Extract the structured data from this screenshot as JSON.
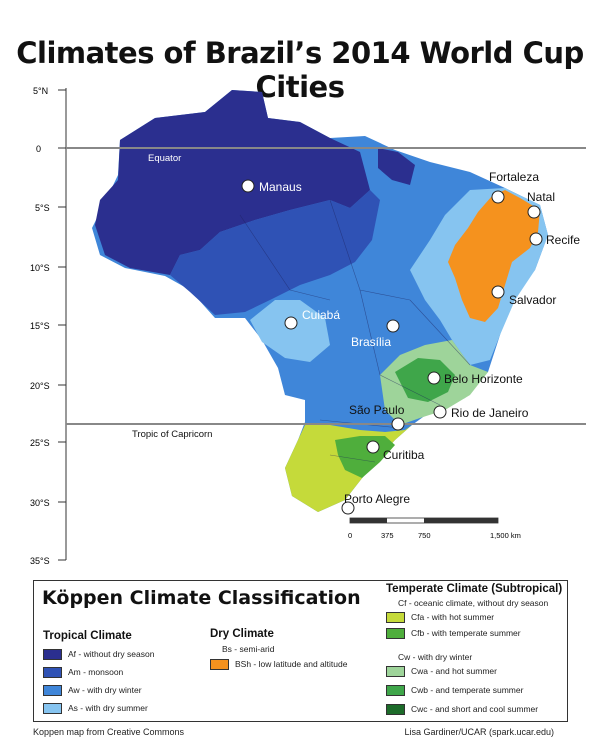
{
  "title": "Climates of Brazil’s 2014 World Cup Cities",
  "map": {
    "latitude_labels": [
      "5°N",
      "0",
      "5°S",
      "10°S",
      "15°S",
      "20°S",
      "25°S",
      "30°S",
      "35°S"
    ],
    "lines": {
      "equator": "Equator",
      "tropic": "Tropic of Capricorn"
    },
    "cities": [
      "Manaus",
      "Fortaleza",
      "Natal",
      "Recife",
      "Salvador",
      "Cuiabá",
      "Brasília",
      "Belo Horizonte",
      "São Paulo",
      "Rio de Janeiro",
      "Curitiba",
      "Porto Alegre"
    ],
    "scale_labels": [
      "0",
      "375",
      "750",
      "1,500 km"
    ]
  },
  "legend": {
    "title": "Köppen Climate Classification",
    "tropical": {
      "title": "Tropical Climate",
      "items": [
        {
          "label": "Af - without dry season",
          "color": "#2b2f8f"
        },
        {
          "label": "Am - monsoon",
          "color": "#2f52b5"
        },
        {
          "label": "Aw - with dry winter",
          "color": "#3f86d9"
        },
        {
          "label": "As - with dry summer",
          "color": "#86c4f0"
        }
      ]
    },
    "dry": {
      "title": "Dry Climate",
      "subtitle": "Bs - semi-arid",
      "items": [
        {
          "label": "BSh - low latitude and altitude",
          "color": "#f5921e"
        }
      ]
    },
    "temperate": {
      "title": "Temperate Climate (Subtropical)",
      "cf_subtitle": "Cf - oceanic climate, without dry season",
      "cf_items": [
        {
          "label": "Cfa - with hot summer",
          "color": "#c5da3a"
        },
        {
          "label": "Cfb - with temperate summer",
          "color": "#4fae3c"
        }
      ],
      "cw_subtitle": "Cw - with dry winter",
      "cw_items": [
        {
          "label": "Cwa - and hot summer",
          "color": "#9ed49a"
        },
        {
          "label": "Cwb - and temperate summer",
          "color": "#3fa64a"
        },
        {
          "label": "Cwc - and short and cool summer",
          "color": "#1d6b2a"
        }
      ]
    }
  },
  "footer": {
    "left": "Koppen map from Creative Commons",
    "right": "Lisa Gardiner/UCAR (spark.ucar.edu)"
  }
}
